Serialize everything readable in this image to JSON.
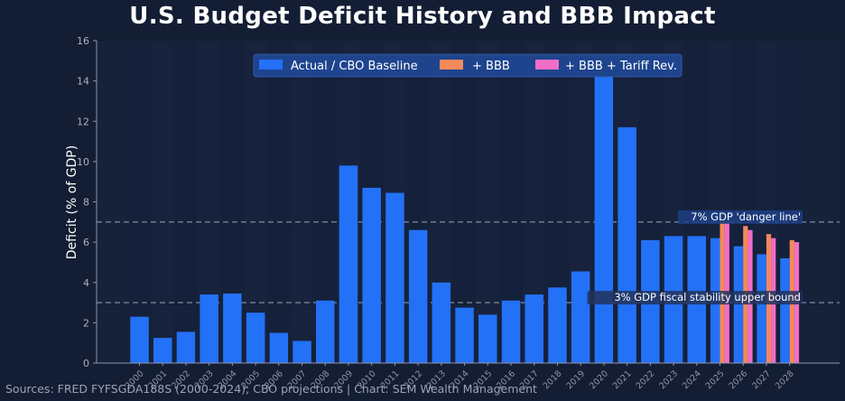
{
  "title": "U.S. Budget Deficit History and BBB Impact",
  "source_note": "Sources: FRED FYFSGDA188S (2000-2024); CBO projections | Chart: SEM Wealth Management",
  "colors": {
    "background": "#131d33",
    "baseline": "#2371f6",
    "bbb": "#f4895c",
    "bbb_tariff": "#f26ec6",
    "reference_line": "#8e97aa",
    "legend_bg": "#1e448e"
  },
  "chart_data": {
    "type": "bar",
    "title": "U.S. Budget Deficit History and BBB Impact",
    "xlabel": "",
    "ylabel": "Deficit (% of GDP)",
    "ylim": [
      0,
      16
    ],
    "yticks": [
      0,
      2,
      4,
      6,
      8,
      10,
      12,
      14,
      16
    ],
    "grid": false,
    "legend_position": "top-center",
    "categories": [
      "2000",
      "2001",
      "2002",
      "2003",
      "2004",
      "2005",
      "2006",
      "2007",
      "2008",
      "2009",
      "2010",
      "2011",
      "2012",
      "2013",
      "2014",
      "2015",
      "2016",
      "2017",
      "2018",
      "2019",
      "2020",
      "2021",
      "2022",
      "2023",
      "2024",
      "2025",
      "2026",
      "2027",
      "2028"
    ],
    "series": [
      {
        "name": "Actual / CBO Baseline",
        "color": "#2371f6",
        "values": [
          2.3,
          1.25,
          1.55,
          3.4,
          3.45,
          2.5,
          1.5,
          1.1,
          3.1,
          9.8,
          8.7,
          8.45,
          6.6,
          4.0,
          2.75,
          2.4,
          3.1,
          3.4,
          3.75,
          4.55,
          14.7,
          11.7,
          6.1,
          6.3,
          6.3,
          6.2,
          5.8,
          5.4,
          5.2
        ]
      },
      {
        "name": "+ BBB",
        "color": "#f4895c",
        "values": [
          null,
          null,
          null,
          null,
          null,
          null,
          null,
          null,
          null,
          null,
          null,
          null,
          null,
          null,
          null,
          null,
          null,
          null,
          null,
          null,
          null,
          null,
          null,
          null,
          null,
          7.0,
          6.8,
          6.4,
          6.1
        ]
      },
      {
        "name": "+ BBB + Tariff Rev.",
        "color": "#f26ec6",
        "values": [
          null,
          null,
          null,
          null,
          null,
          null,
          null,
          null,
          null,
          null,
          null,
          null,
          null,
          null,
          null,
          null,
          null,
          null,
          null,
          null,
          null,
          null,
          null,
          null,
          null,
          7.0,
          6.6,
          6.2,
          6.0
        ]
      }
    ],
    "reference_lines": [
      {
        "y": 7,
        "label": "7% GDP 'danger line'"
      },
      {
        "y": 3,
        "label": "3% GDP fiscal stability upper bound"
      }
    ]
  }
}
